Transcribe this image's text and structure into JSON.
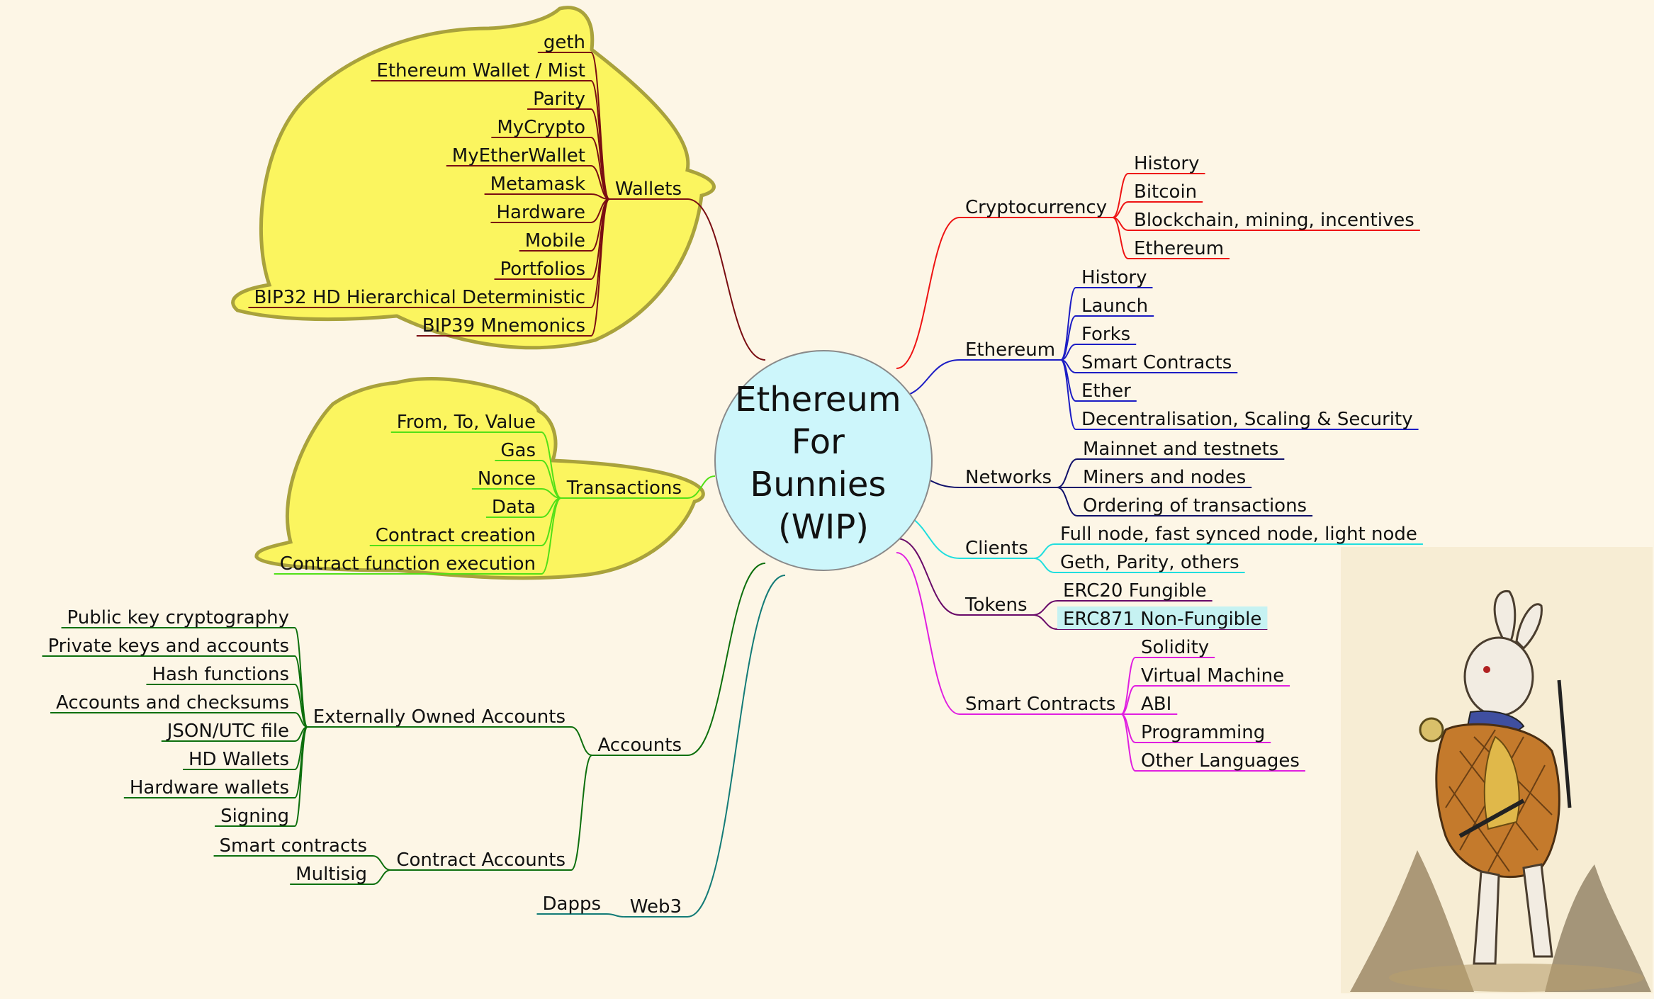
{
  "title": [
    "Ethereum",
    "For",
    "Bunnies",
    "(WIP)"
  ],
  "colors": {
    "background": "#fdf6e6",
    "center_fill": "#cdf6fb",
    "cloud_fill": "#fbf55f",
    "cloud_stroke": "#a9a23c",
    "wallets": "#7a0d12",
    "transactions": "#52e016",
    "accounts": "#0d6f0d",
    "web3": "#137b77",
    "cryptocurrency": "#ee1414",
    "ethereum": "#1c1cc4",
    "networks": "#10106a",
    "clients": "#20dede",
    "tokens": "#690a69",
    "smart_contracts": "#e01fe0",
    "highlight": "#c6f2f2"
  },
  "branches": {
    "wallets": {
      "label": "Wallets",
      "items": [
        "geth",
        "Ethereum Wallet / Mist",
        "Parity",
        "MyCrypto",
        "MyEtherWallet",
        "Metamask",
        "Hardware",
        "Mobile",
        "Portfolios",
        "BIP32 HD Hierarchical Deterministic",
        "BIP39 Mnemonics"
      ]
    },
    "transactions": {
      "label": "Transactions",
      "items": [
        "From, To, Value",
        "Gas",
        "Nonce",
        "Data",
        "Contract creation",
        "Contract function execution"
      ]
    },
    "accounts": {
      "label": "Accounts",
      "eoa": {
        "label": "Externally Owned Accounts",
        "items": [
          "Public key cryptography",
          "Private keys and accounts",
          "Hash functions",
          "Accounts and checksums",
          "JSON/UTC file",
          "HD Wallets",
          "Hardware wallets",
          "Signing"
        ]
      },
      "contract": {
        "label": "Contract Accounts",
        "items": [
          "Smart contracts",
          "Multisig"
        ]
      }
    },
    "web3": {
      "label": "Web3",
      "items": [
        "Dapps"
      ]
    },
    "cryptocurrency": {
      "label": "Cryptocurrency",
      "items": [
        "History",
        "Bitcoin",
        "Blockchain, mining, incentives",
        "Ethereum"
      ]
    },
    "ethereum": {
      "label": "Ethereum",
      "items": [
        "History",
        "Launch",
        "Forks",
        "Smart Contracts",
        "Ether",
        "Decentralisation, Scaling & Security"
      ]
    },
    "networks": {
      "label": "Networks",
      "items": [
        "Mainnet and testnets",
        "Miners and nodes",
        "Ordering of transactions"
      ]
    },
    "clients": {
      "label": "Clients",
      "items": [
        "Full node, fast synced node, light node",
        "Geth, Parity, others"
      ]
    },
    "tokens": {
      "label": "Tokens",
      "items": [
        "ERC20 Fungible",
        "ERC871 Non-Fungible"
      ]
    },
    "smart_contracts": {
      "label": "Smart Contracts",
      "items": [
        "Solidity",
        "Virtual Machine",
        "ABI",
        "Programming",
        "Other Languages"
      ]
    }
  },
  "illustration": {
    "name": "White Rabbit with pocket watch"
  }
}
